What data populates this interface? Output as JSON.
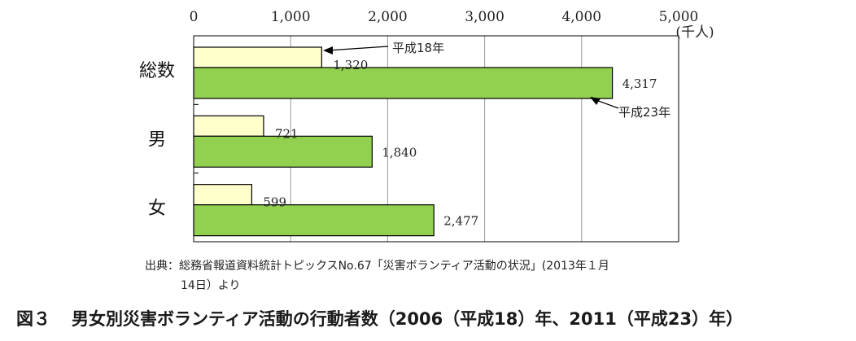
{
  "chart_data": {
    "type": "bar",
    "orientation": "horizontal",
    "categories": [
      "総数",
      "男",
      "女"
    ],
    "series": [
      {
        "name": "平成18年",
        "values": [
          1320,
          721,
          599
        ],
        "color": "#ffffcc"
      },
      {
        "name": "平成23年",
        "values": [
          4317,
          1840,
          2477
        ],
        "color": "#92d050"
      }
    ],
    "data_labels": [
      [
        "1,320",
        "721",
        "599"
      ],
      [
        "4,317",
        "1,840",
        "2,477"
      ]
    ],
    "xlim": [
      0,
      5000
    ],
    "ticks": [
      0,
      1000,
      2000,
      3000,
      4000,
      5000
    ],
    "tick_labels": [
      "0",
      "1,000",
      "2,000",
      "3,000",
      "4,000",
      "5,000"
    ],
    "unit_label": "(千人)",
    "grid": true,
    "legend": "callout labels"
  },
  "source": {
    "line1": "出典：総務省報道資料統計トピックスNo.67「災害ボランティア活動の状況」(2013年１月",
    "line2": "14日）より"
  },
  "caption": {
    "number": "図３",
    "title": "男女別災害ボランティア活動の行動者数（2006（平成18）年、2011（平成23）年）"
  }
}
